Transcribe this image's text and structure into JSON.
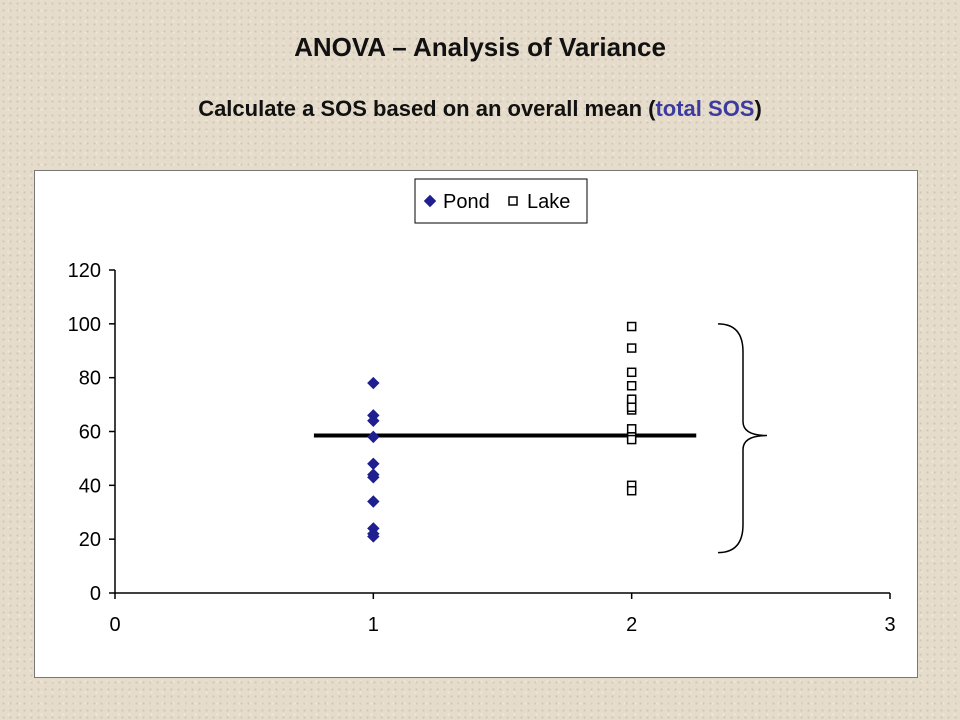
{
  "slide": {
    "title": "ANOVA – Analysis of Variance",
    "subtitle_main": "Calculate a SOS based on an overall mean (",
    "subtitle_accent": "total SOS",
    "subtitle_end": ")",
    "accent_color": "#3c3ca0"
  },
  "chart_data": {
    "type": "scatter",
    "title": "",
    "xlabel": "",
    "ylabel": "",
    "xlim": [
      0,
      3
    ],
    "ylim": [
      0,
      120
    ],
    "x_ticks": [
      0,
      1,
      2,
      3
    ],
    "y_ticks": [
      0,
      20,
      40,
      60,
      80,
      100,
      120
    ],
    "grid": false,
    "legend_placement": "top-center",
    "series": [
      {
        "name": "Pond",
        "marker": "diamond",
        "color": "#1f1f8f",
        "x": [
          1,
          1,
          1,
          1,
          1,
          1,
          1,
          1,
          1,
          1,
          1
        ],
        "y": [
          78,
          66,
          64,
          58,
          48,
          44,
          43,
          34,
          24,
          22,
          21
        ]
      },
      {
        "name": "Lake",
        "marker": "square-open",
        "color": "#000000",
        "x": [
          2,
          2,
          2,
          2,
          2,
          2,
          2,
          2,
          2,
          2,
          2,
          2,
          2
        ],
        "y": [
          99,
          91,
          82,
          77,
          71,
          68,
          61,
          58,
          57,
          40,
          38,
          72,
          69
        ]
      }
    ],
    "overall_mean": {
      "y": 58.5,
      "x_from": 0.77,
      "x_to": 2.25
    },
    "bracket": {
      "y_from": 15,
      "y_to": 100
    }
  }
}
